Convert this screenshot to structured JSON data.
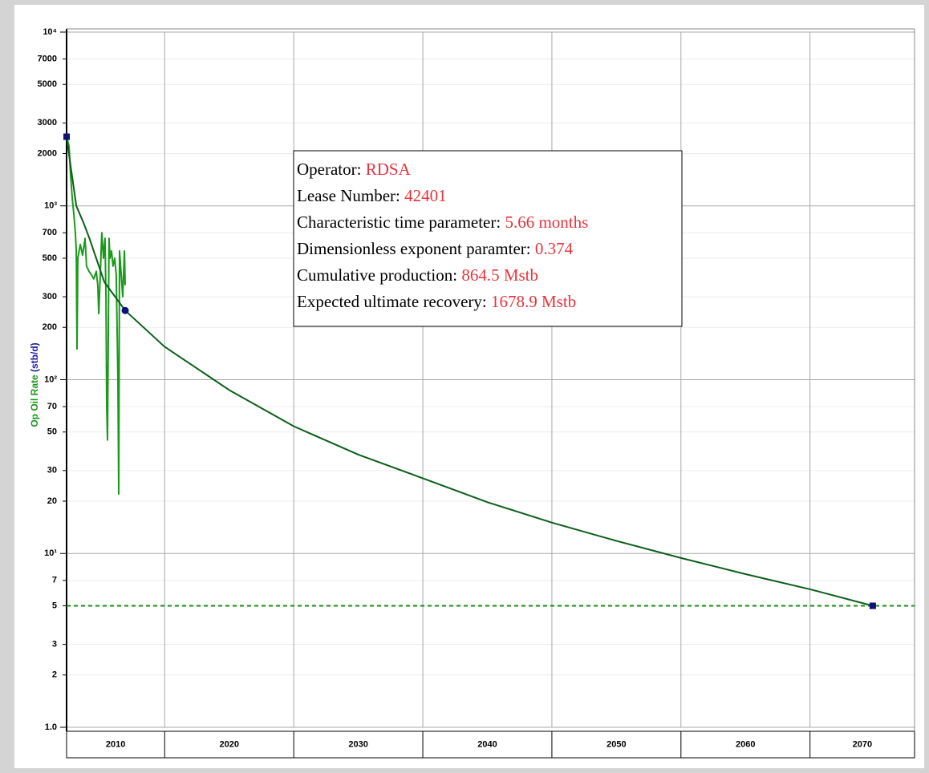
{
  "chart_data": {
    "type": "line",
    "ylabel": "Op Oil Rate",
    "yunit": "(stb/d)",
    "ylabel_color": "#1a9a1a",
    "yunit_color": "#1a1aa0",
    "log_y": true,
    "grid": true,
    "xlim": [
      2007.4,
      2073.1
    ],
    "xticks": [
      2010,
      2020,
      2030,
      2040,
      2050,
      2060,
      2070
    ],
    "ylim": [
      1,
      10000
    ],
    "yticks": [
      {
        "value": 10000,
        "label": "10⁴"
      },
      7000,
      5000,
      3000,
      2000,
      {
        "value": 1000,
        "label": "10³"
      },
      700,
      500,
      300,
      200,
      {
        "value": 100,
        "label": "10²"
      },
      70,
      50,
      30,
      20,
      {
        "value": 10,
        "label": "10¹"
      },
      7,
      5,
      3,
      2,
      {
        "value": 1,
        "label": "1.0"
      }
    ],
    "series": [
      {
        "color": "#1a9a1a",
        "x": [
          2007.4,
          2007.59,
          2007.71,
          2007.84,
          2007.96,
          2008.08,
          2008.15,
          2008.21,
          2008.27,
          2008.46,
          2008.64,
          2008.83,
          2008.95,
          2009.14,
          2009.33,
          2009.51,
          2009.7,
          2009.82,
          2009.89,
          2010.01,
          2010.13,
          2010.26,
          2010.38,
          2010.45,
          2010.51,
          2010.57,
          2010.69,
          2010.76,
          2010.88,
          2011.0,
          2011.13,
          2011.25,
          2011.38,
          2011.44,
          2011.5,
          2011.63,
          2011.75,
          2011.88,
          2011.94
        ],
        "values": [
          2500,
          2200,
          1500,
          1100,
          900,
          700,
          550,
          150,
          500,
          600,
          520,
          650,
          450,
          420,
          400,
          380,
          420,
          350,
          240,
          400,
          700,
          500,
          650,
          300,
          70,
          45,
          650,
          500,
          550,
          450,
          500,
          400,
          100,
          22,
          550,
          400,
          300,
          550,
          350
        ]
      },
      {
        "color": "#0b5e1a",
        "x": [
          2007.4,
          2007.71,
          2008.15,
          2008.71,
          2009.17,
          2010.32,
          2011.94,
          2014.98,
          2020.02,
          2024.99,
          2030.02,
          2035.06,
          2040.03,
          2045.07,
          2050.04,
          2055.07,
          2060.04,
          2065.08,
          2069.86
        ],
        "values": [
          2500,
          1700,
          1000,
          800,
          650,
          365,
          250,
          155,
          87,
          54,
          37,
          27,
          19.7,
          15,
          11.8,
          9.4,
          7.6,
          6.2,
          5.0
        ]
      }
    ],
    "limit": 5,
    "limit_color": "#1a8a1a",
    "markers": [
      {
        "x": 2007.4,
        "y": 2500,
        "shape": "square",
        "color": "#10107a"
      },
      {
        "x": 2011.94,
        "y": 250,
        "shape": "circle",
        "color": "#10107a"
      },
      {
        "x": 2069.86,
        "y": 5,
        "shape": "square",
        "color": "#10107a"
      }
    ],
    "annotation_colors": {
      "label": "#000000",
      "value": "#e8323c"
    },
    "annotations": [
      {
        "label": "Operator:",
        "value": "RDSA"
      },
      {
        "label": "Lease Number:",
        "value": "42401"
      },
      {
        "label": "Characteristic time parameter:",
        "value": "5.66 months"
      },
      {
        "label": "Dimensionless exponent paramter:",
        "value": "0.374"
      },
      {
        "label": "Cumulative production:",
        "value": "864.5 Mstb"
      },
      {
        "label": "Expected ultimate recovery:",
        "value": "1678.9 Mstb"
      }
    ]
  }
}
